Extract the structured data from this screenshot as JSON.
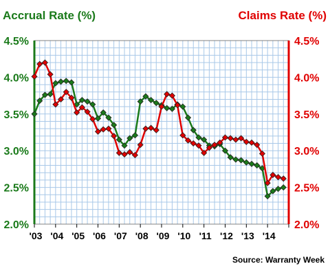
{
  "chart_data": {
    "type": "line",
    "title_left": "Accrual Rate (%)",
    "title_right": "Claims Rate (%)",
    "source": "Source: Warranty Week",
    "y_ticks": [
      "2.0%",
      "2.5%",
      "3.0%",
      "3.5%",
      "4.0%",
      "4.5%"
    ],
    "x_tick_labels": [
      "'03",
      "'04",
      "'05",
      "'06",
      "'07",
      "'08",
      "'09",
      "'10",
      "'11",
      "'12",
      "'13",
      "'14"
    ],
    "ylim": [
      2.0,
      4.5
    ],
    "xlim": [
      2003,
      2015
    ],
    "colors": {
      "accrual": "#1a7a1a",
      "claims": "#e00000",
      "grid": "#a8c8e8",
      "axis": "#808080"
    },
    "series": [
      {
        "key": "accrual",
        "x": [
          2003.0,
          2003.25,
          2003.5,
          2003.75,
          2004.0,
          2004.25,
          2004.5,
          2004.75,
          2005.0,
          2005.25,
          2005.5,
          2005.75,
          2006.0,
          2006.25,
          2006.5,
          2006.75,
          2007.0,
          2007.25,
          2007.5,
          2007.75,
          2008.0,
          2008.25,
          2008.5,
          2008.75,
          2009.0,
          2009.25,
          2009.5,
          2009.75,
          2010.0,
          2010.25,
          2010.5,
          2010.75,
          2011.0,
          2011.25,
          2011.5,
          2011.75,
          2012.0,
          2012.25,
          2012.5,
          2012.75,
          2013.0,
          2013.25,
          2013.5,
          2013.75,
          2014.0,
          2014.25,
          2014.5,
          2014.75
        ],
        "values": [
          3.5,
          3.68,
          3.76,
          3.77,
          3.92,
          3.94,
          3.95,
          3.93,
          3.63,
          3.69,
          3.67,
          3.63,
          3.44,
          3.52,
          3.45,
          3.35,
          3.15,
          3.07,
          3.17,
          3.21,
          3.67,
          3.74,
          3.69,
          3.65,
          3.62,
          3.58,
          3.57,
          3.63,
          3.6,
          3.45,
          3.28,
          3.18,
          3.15,
          3.07,
          3.06,
          3.09,
          3.0,
          2.91,
          2.88,
          2.87,
          2.84,
          2.82,
          2.8,
          2.76,
          2.38,
          2.45,
          2.48,
          2.5
        ]
      },
      {
        "key": "claims",
        "x": [
          2003.0,
          2003.25,
          2003.5,
          2003.75,
          2004.0,
          2004.25,
          2004.5,
          2004.75,
          2005.0,
          2005.25,
          2005.5,
          2005.75,
          2006.0,
          2006.25,
          2006.5,
          2006.75,
          2007.0,
          2007.25,
          2007.5,
          2007.75,
          2008.0,
          2008.25,
          2008.5,
          2008.75,
          2009.0,
          2009.25,
          2009.5,
          2009.75,
          2010.0,
          2010.25,
          2010.5,
          2010.75,
          2011.0,
          2011.25,
          2011.5,
          2011.75,
          2012.0,
          2012.25,
          2012.5,
          2012.75,
          2013.0,
          2013.25,
          2013.5,
          2013.75,
          2014.0,
          2014.25,
          2014.5,
          2014.75
        ],
        "values": [
          4.01,
          4.18,
          4.2,
          4.04,
          3.63,
          3.7,
          3.8,
          3.72,
          3.52,
          3.59,
          3.53,
          3.43,
          3.26,
          3.29,
          3.3,
          3.2,
          2.97,
          2.95,
          2.98,
          2.94,
          3.08,
          3.3,
          3.31,
          3.28,
          3.6,
          3.77,
          3.75,
          3.62,
          3.21,
          3.14,
          3.1,
          3.07,
          2.97,
          3.04,
          3.08,
          3.11,
          3.18,
          3.17,
          3.15,
          3.17,
          3.12,
          3.11,
          3.08,
          2.96,
          2.56,
          2.67,
          2.64,
          2.62
        ]
      }
    ]
  }
}
